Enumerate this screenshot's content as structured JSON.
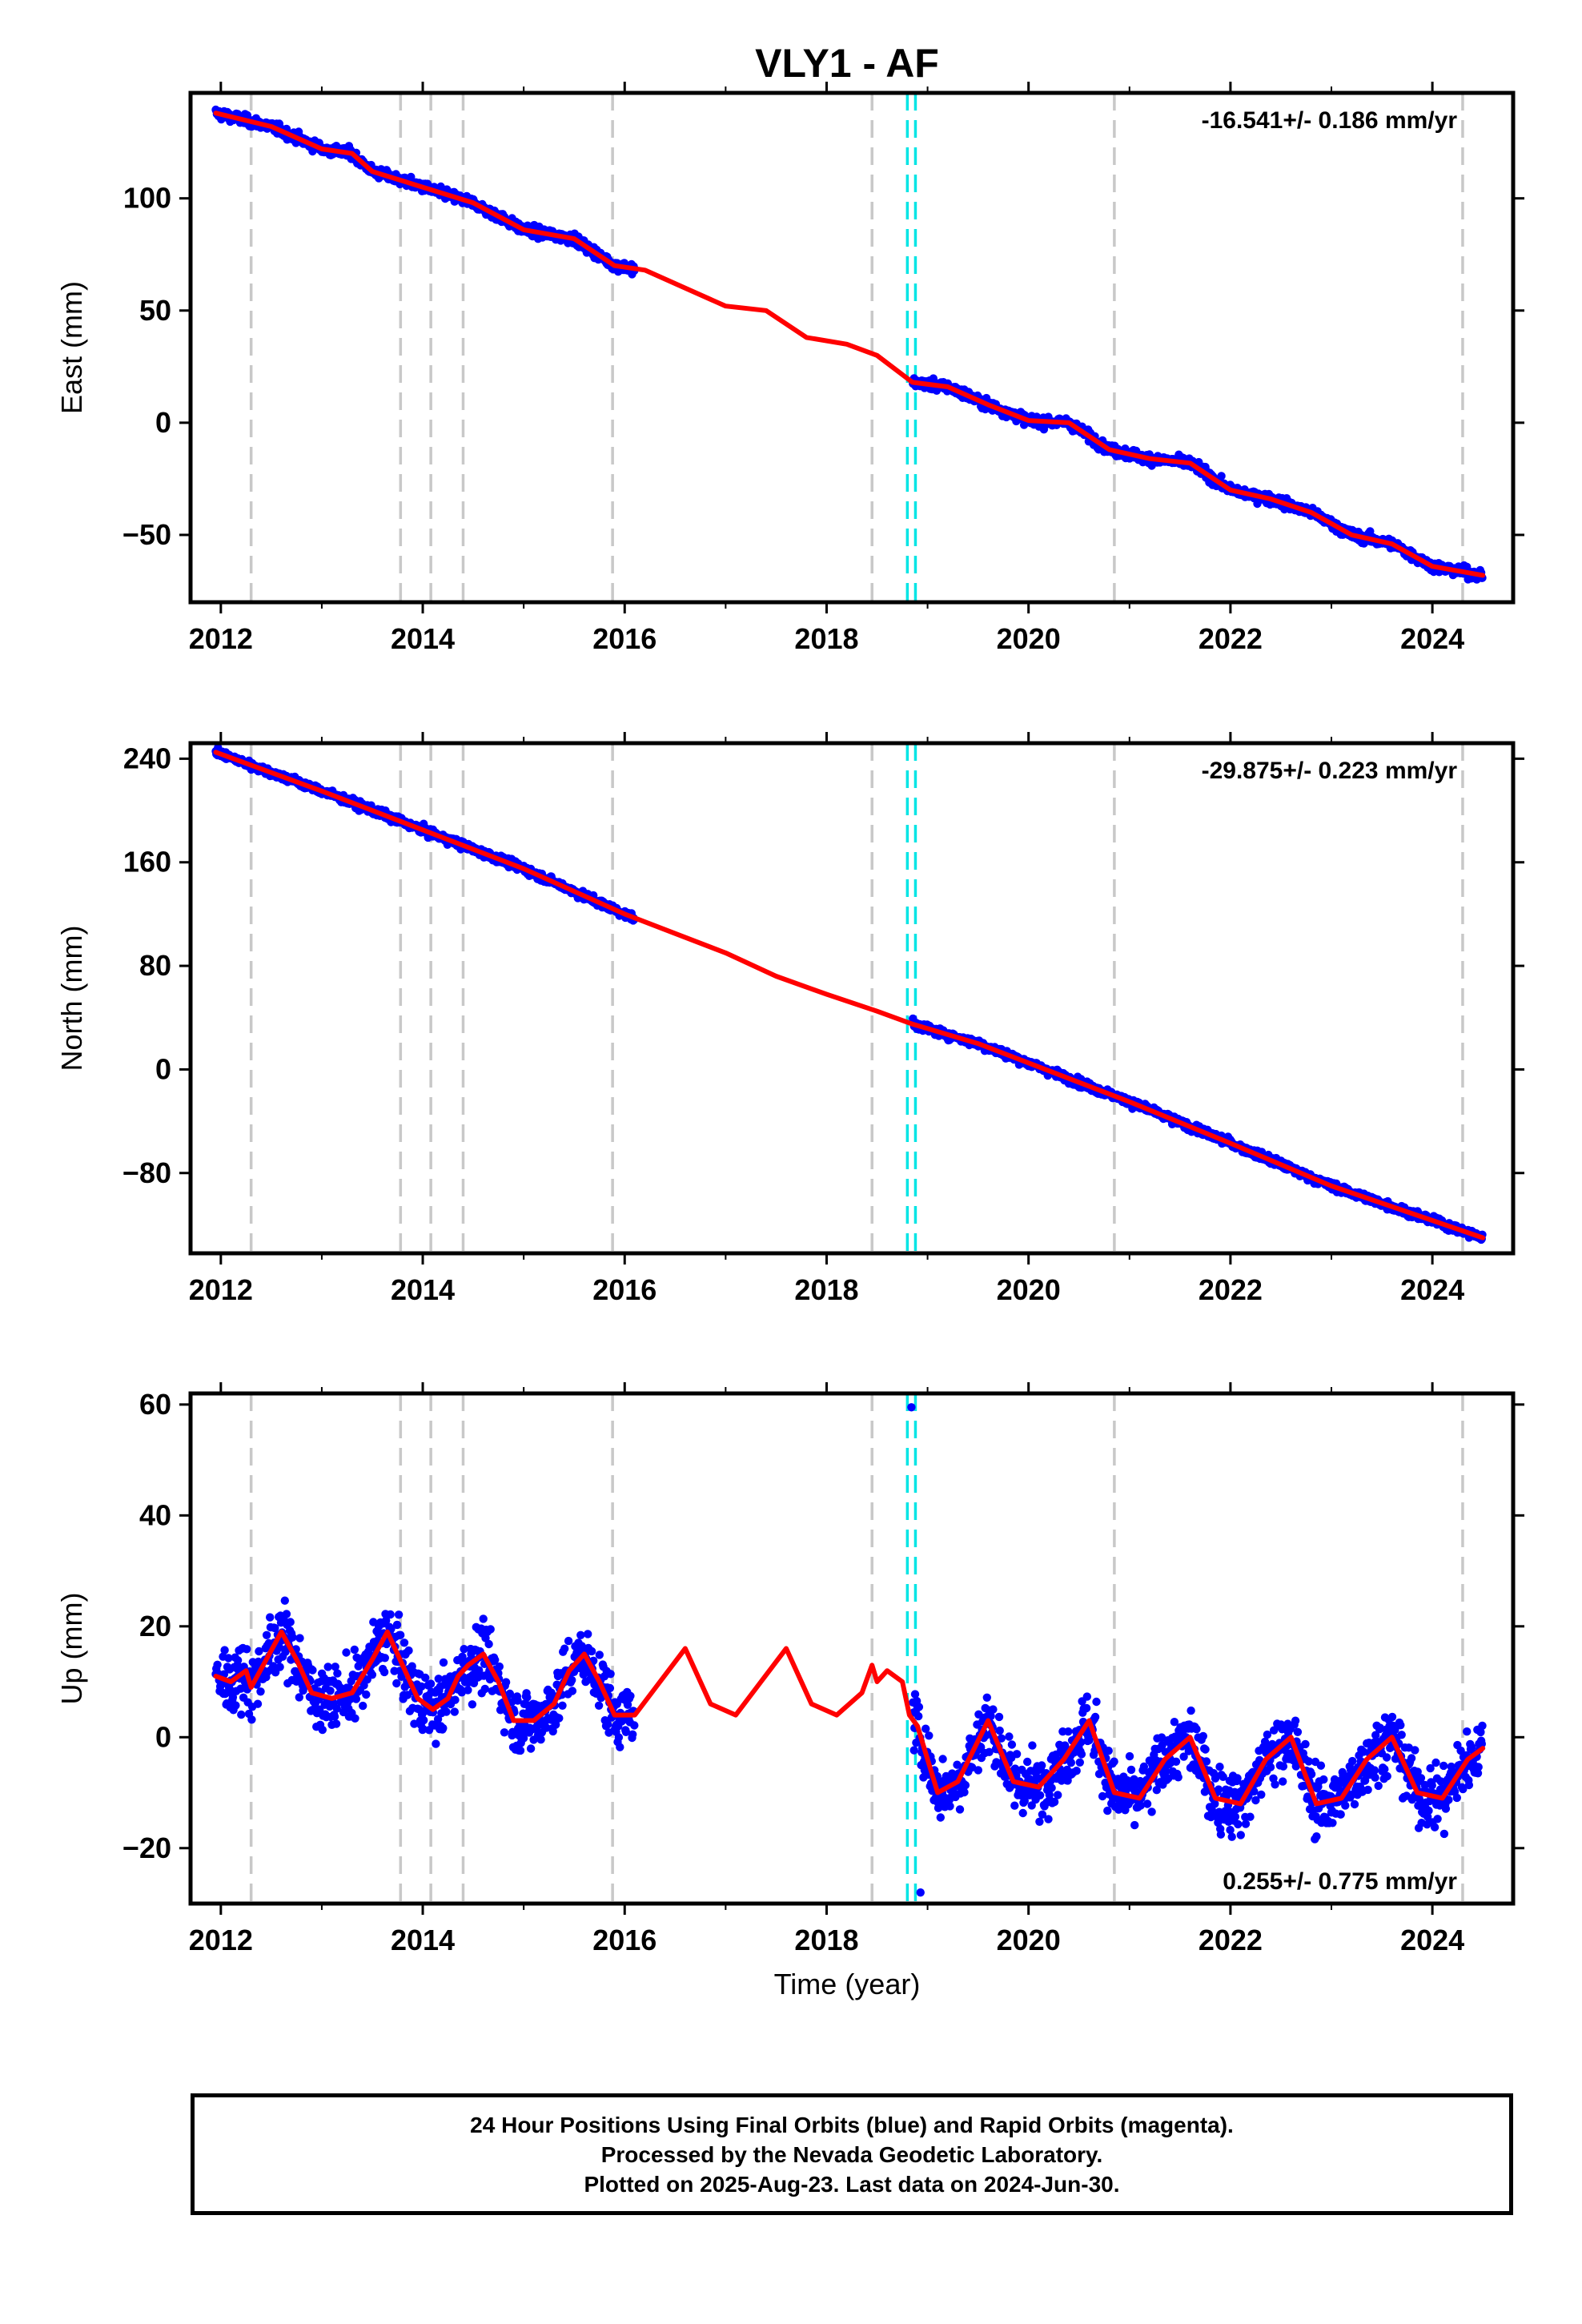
{
  "figure": {
    "title": "VLY1 - AF",
    "xlabel": "Time (year)",
    "footer_lines": [
      "24 Hour Positions Using Final Orbits (blue) and Rapid Orbits (magenta).",
      "Processed by the Nevada Geodetic Laboratory.",
      "Plotted on 2025-Aug-23. Last data on 2024-Jun-30."
    ]
  },
  "colors": {
    "points": "#0000ff",
    "model": "#ff0000",
    "equipment_change": "#c8c8c8",
    "earthquake": "#00e5e5",
    "frame": "#000000"
  },
  "chart_data": [
    {
      "type": "scatter",
      "component": "east",
      "ylabel": "East (mm)",
      "rate_label": "-16.541+/- 0.186 mm/yr",
      "xlim": [
        2011.7,
        2024.8
      ],
      "ylim": [
        -80,
        147
      ],
      "xticks": [
        "2012",
        "2014",
        "2016",
        "2018",
        "2020",
        "2022",
        "2024"
      ],
      "yticks": [
        "100",
        "50",
        "0",
        "−50"
      ],
      "data_gap": [
        2016.1,
        2018.85
      ],
      "model_series": {
        "x": [
          2011.95,
          2012.5,
          2013.0,
          2013.3,
          2013.5,
          2014.0,
          2014.5,
          2015.0,
          2015.5,
          2015.9,
          2016.2,
          2016.6,
          2017.0,
          2017.4,
          2017.8,
          2018.2,
          2018.5,
          2018.85,
          2019.2,
          2019.6,
          2020.0,
          2020.4,
          2020.8,
          2021.2,
          2021.6,
          2022.0,
          2022.4,
          2022.8,
          2023.2,
          2023.6,
          2024.0,
          2024.5
        ],
        "y": [
          138,
          132,
          122,
          120,
          112,
          105,
          98,
          86,
          82,
          70,
          68,
          60,
          52,
          50,
          38,
          35,
          30,
          18,
          16,
          8,
          1,
          0,
          -12,
          -16,
          -18,
          -30,
          -34,
          -40,
          -50,
          -54,
          -64,
          -68
        ]
      },
      "equipment_changes": [
        2012.3,
        2013.78,
        2014.08,
        2014.4,
        2015.88,
        2018.45,
        2020.85,
        2024.3
      ],
      "earthquakes": [
        2018.8,
        2018.88
      ]
    },
    {
      "type": "scatter",
      "component": "north",
      "ylabel": "North (mm)",
      "rate_label": "-29.875+/- 0.223 mm/yr",
      "xlim": [
        2011.7,
        2024.8
      ],
      "ylim": [
        -142,
        252
      ],
      "xticks": [
        "2012",
        "2014",
        "2016",
        "2018",
        "2020",
        "2022",
        "2024"
      ],
      "yticks": [
        "240",
        "160",
        "80",
        "0",
        "−80"
      ],
      "data_gap": [
        2016.1,
        2018.85
      ],
      "model_series": {
        "x": [
          2011.95,
          2013.0,
          2014.0,
          2015.0,
          2016.0,
          2016.5,
          2017.0,
          2017.5,
          2018.0,
          2018.5,
          2018.85,
          2019.5,
          2020.0,
          2021.0,
          2022.0,
          2023.0,
          2024.5
        ],
        "y": [
          245,
          215,
          185,
          155,
          120,
          105,
          90,
          72,
          58,
          45,
          35,
          20,
          5,
          -25,
          -57,
          -90,
          -130
        ]
      },
      "equipment_changes": [
        2012.3,
        2013.78,
        2014.08,
        2014.4,
        2015.88,
        2018.45,
        2020.85,
        2024.3
      ],
      "earthquakes": [
        2018.8,
        2018.88
      ]
    },
    {
      "type": "scatter",
      "component": "up",
      "ylabel": "Up (mm)",
      "rate_label": "0.255+/- 0.775 mm/yr",
      "xlim": [
        2011.7,
        2024.8
      ],
      "ylim": [
        -30,
        62
      ],
      "xticks": [
        "2012",
        "2014",
        "2016",
        "2018",
        "2020",
        "2022",
        "2024"
      ],
      "yticks": [
        "60",
        "40",
        "20",
        "0",
        "−20"
      ],
      "data_gap": [
        2016.1,
        2018.85
      ],
      "outliers": [
        {
          "x": 2018.84,
          "y": 59.5
        },
        {
          "x": 2018.93,
          "y": -28
        }
      ],
      "model_series": {
        "x": [
          2011.95,
          2012.1,
          2012.25,
          2012.3,
          2012.45,
          2012.6,
          2012.75,
          2012.9,
          2013.1,
          2013.3,
          2013.5,
          2013.65,
          2013.8,
          2013.95,
          2014.1,
          2014.25,
          2014.35,
          2014.45,
          2014.6,
          2014.75,
          2014.9,
          2015.1,
          2015.3,
          2015.45,
          2015.6,
          2015.75,
          2015.9,
          2016.1,
          2016.35,
          2016.6,
          2016.85,
          2017.1,
          2017.35,
          2017.6,
          2017.85,
          2018.1,
          2018.35,
          2018.45,
          2018.5,
          2018.6,
          2018.75,
          2018.82,
          2018.9,
          2019.1,
          2019.3,
          2019.6,
          2019.85,
          2020.1,
          2020.35,
          2020.6,
          2020.85,
          2021.1,
          2021.35,
          2021.6,
          2021.85,
          2022.1,
          2022.35,
          2022.6,
          2022.85,
          2023.1,
          2023.35,
          2023.6,
          2023.85,
          2024.1,
          2024.35,
          2024.5
        ],
        "y": [
          11,
          10,
          12,
          9,
          14,
          19,
          14,
          8,
          7,
          8,
          14,
          19,
          13,
          7,
          5,
          7,
          11,
          13,
          15,
          10,
          3,
          3,
          6,
          12,
          15,
          10,
          4,
          4,
          10,
          16,
          6,
          4,
          10,
          16,
          6,
          4,
          8,
          13,
          10,
          12,
          10,
          4,
          2,
          -10,
          -8,
          3,
          -8,
          -9,
          -4,
          3,
          -10,
          -11,
          -4,
          0,
          -11,
          -12,
          -4,
          0,
          -12,
          -11,
          -4,
          0,
          -10,
          -11,
          -4,
          -2
        ]
      },
      "equipment_changes": [
        2012.3,
        2013.78,
        2014.08,
        2014.4,
        2015.88,
        2018.45,
        2020.85,
        2024.3
      ],
      "earthquakes": [
        2018.8,
        2018.88
      ]
    }
  ]
}
